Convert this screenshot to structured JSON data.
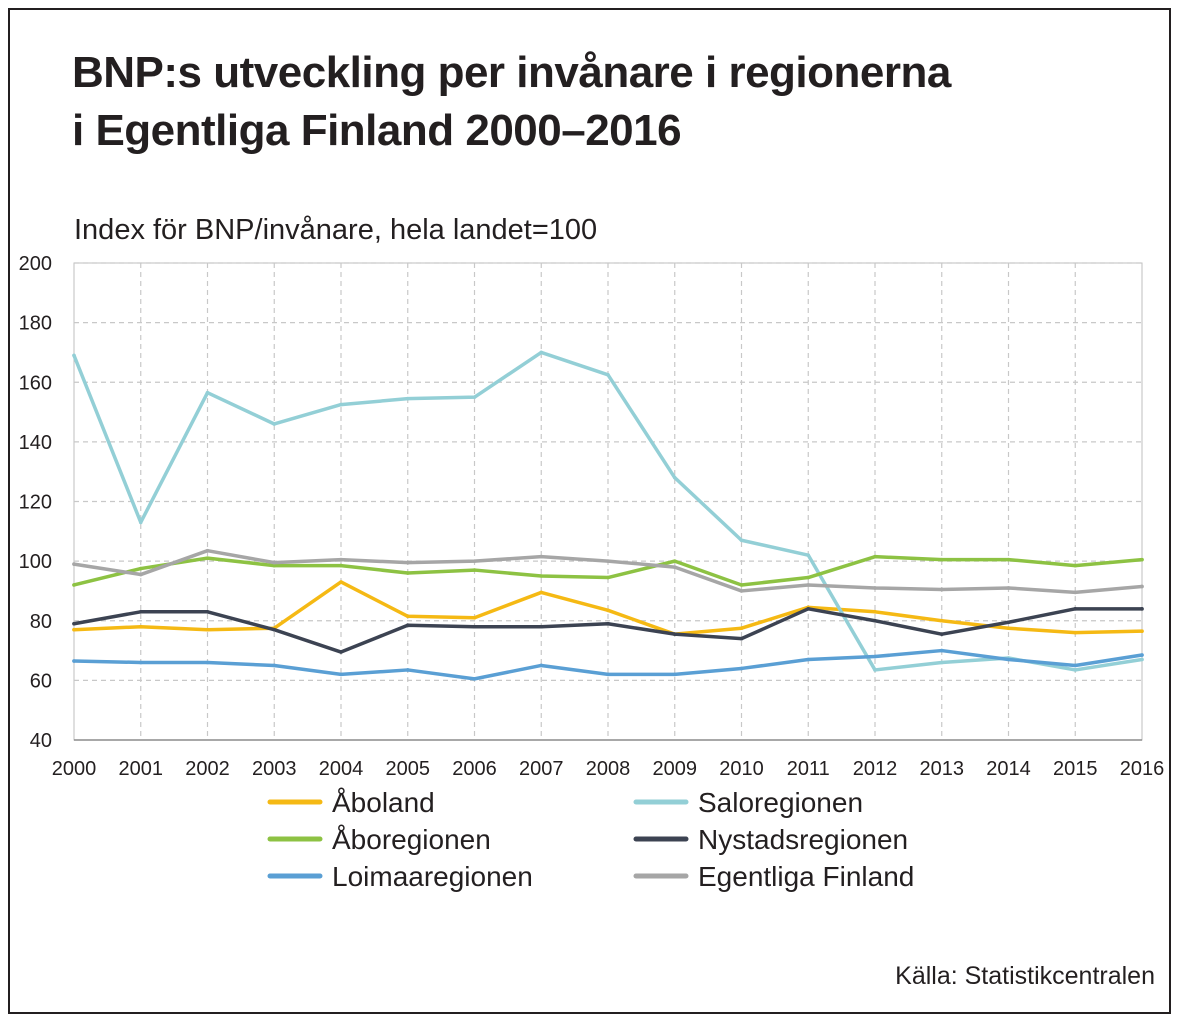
{
  "title_line1": "BNP:s utveckling per invånare i regionerna",
  "title_line2": "i Egentliga Finland 2000–2016",
  "subtitle": "Index för BNP/invånare, hela landet=100",
  "source": "Källa: Statistikcentralen",
  "chart_data": {
    "type": "line",
    "ylim": [
      40,
      200
    ],
    "yticks": [
      40,
      60,
      80,
      100,
      120,
      140,
      160,
      180,
      200
    ],
    "grid": true,
    "legend_position": "bottom",
    "x": [
      "2000",
      "2001",
      "2002",
      "2003",
      "2004",
      "2005",
      "2006",
      "2007",
      "2008",
      "2009",
      "2010",
      "2011",
      "2012",
      "2013",
      "2014",
      "2015",
      "2016"
    ],
    "series": [
      {
        "name": "Åboland",
        "color": "#f5b914",
        "values": [
          77,
          78,
          77,
          77.5,
          93,
          81.5,
          81,
          89.5,
          83.5,
          75.5,
          77.5,
          84.5,
          83,
          80,
          77.5,
          76,
          76.5
        ]
      },
      {
        "name": "Saloregionen",
        "color": "#93cfd6",
        "values": [
          169,
          113,
          156.5,
          146,
          152.5,
          154.5,
          155,
          170,
          162.5,
          128,
          107,
          102,
          63.5,
          66,
          67.5,
          63.5,
          67
        ]
      },
      {
        "name": "Åboregionen",
        "color": "#8dc243",
        "values": [
          92,
          97.5,
          101,
          98.5,
          98.5,
          96,
          97,
          95,
          94.5,
          100,
          92,
          94.5,
          101.5,
          100.5,
          100.5,
          98.5,
          100.5
        ]
      },
      {
        "name": "Nystadsregionen",
        "color": "#3c4352",
        "values": [
          79,
          83,
          83,
          77,
          69.5,
          78.5,
          78,
          78,
          79,
          75.5,
          74,
          84,
          80,
          75.5,
          79.5,
          84,
          84
        ]
      },
      {
        "name": "Loimaaregionen",
        "color": "#5a9fd4",
        "values": [
          66.5,
          66,
          66,
          65,
          62,
          63.5,
          60.5,
          65,
          62,
          62,
          64,
          67,
          68,
          70,
          67,
          65,
          68.5
        ]
      },
      {
        "name": "Egentliga Finland",
        "color": "#a6a6a6",
        "values": [
          99,
          95.5,
          103.5,
          99.5,
          100.5,
          99.5,
          100,
          101.5,
          100,
          98,
          90,
          92,
          91,
          90.5,
          91,
          89.5,
          91.5
        ]
      }
    ],
    "legend_order": [
      "Åboland",
      "Saloregionen",
      "Åboregionen",
      "Nystadsregionen",
      "Loimaaregionen",
      "Egentliga Finland"
    ]
  }
}
